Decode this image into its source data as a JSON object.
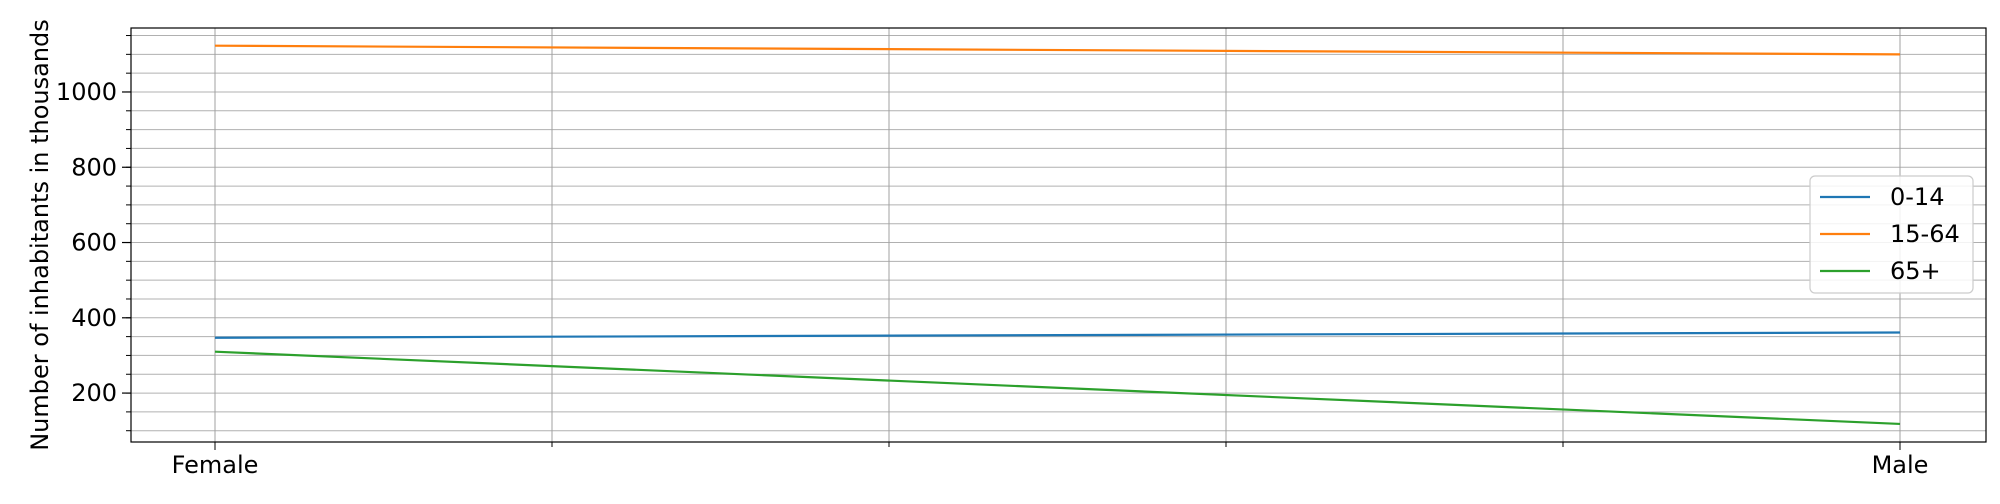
{
  "chart_data": {
    "type": "line",
    "title": "",
    "xlabel": "",
    "ylabel": "Number of inhabitants in thousands",
    "categories": [
      "Female",
      "Male"
    ],
    "series": [
      {
        "name": "0-14",
        "color": "#1f77b4",
        "values": [
          347,
          361
        ]
      },
      {
        "name": "15-64",
        "color": "#ff7f0e",
        "values": [
          1123,
          1100
        ]
      },
      {
        "name": "65+",
        "color": "#2ca02c",
        "values": [
          310,
          118
        ]
      }
    ],
    "ylim": [
      70,
      1170
    ],
    "y_ticks": [
      200,
      400,
      600,
      800,
      1000
    ],
    "y_minor_step": 50,
    "x_minor_divisions": 5,
    "grid": true,
    "legend_position": "center-right"
  }
}
